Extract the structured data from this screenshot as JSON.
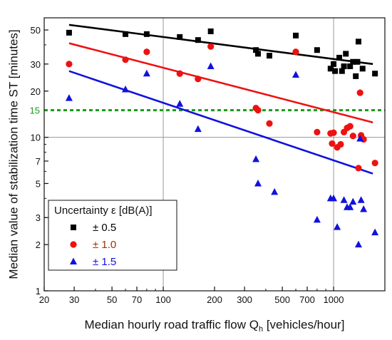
{
  "chart_data": {
    "type": "scatter",
    "x_scale": "log",
    "y_scale": "log",
    "xlim": [
      20,
      2000
    ],
    "ylim": [
      1,
      60
    ],
    "xlabel_main": "Median hourly road traffic flow Q",
    "xlabel_sub": "h",
    "xlabel_unit": "[vehicles/hour]",
    "ylabel": "Median value of stabilization time ST [minutes]",
    "x_ticks": [
      20,
      30,
      50,
      70,
      100,
      200,
      300,
      500,
      700,
      1000
    ],
    "x_tick_labels": [
      "20",
      "30",
      "50",
      "70",
      "100",
      "200",
      "300",
      "500",
      "700",
      "1000"
    ],
    "y_ticks": [
      1,
      2,
      3,
      5,
      7,
      10,
      20,
      30,
      50
    ],
    "y_tick_labels": [
      "1",
      "2",
      "3",
      "5",
      "7",
      "10",
      "20",
      "30",
      "50"
    ],
    "gridlines_x": [
      100,
      1000
    ],
    "gridlines_y": [
      10
    ],
    "reference_line": {
      "y": 15,
      "label": "15",
      "color": "#1a9a1a"
    },
    "legend": {
      "title": "Uncertainty ε [dB(A)]",
      "position": "bottom-left"
    },
    "series": [
      {
        "name": "± 0.5",
        "marker": "square",
        "color": "#000000",
        "points": [
          [
            28,
            48
          ],
          [
            60,
            47
          ],
          [
            80,
            47
          ],
          [
            125,
            45
          ],
          [
            160,
            43
          ],
          [
            190,
            49
          ],
          [
            350,
            37
          ],
          [
            360,
            35
          ],
          [
            420,
            34
          ],
          [
            600,
            46
          ],
          [
            800,
            37
          ],
          [
            960,
            28
          ],
          [
            1000,
            30
          ],
          [
            1020,
            27
          ],
          [
            1080,
            33
          ],
          [
            1120,
            27
          ],
          [
            1150,
            29
          ],
          [
            1180,
            35
          ],
          [
            1250,
            29
          ],
          [
            1300,
            31
          ],
          [
            1350,
            25
          ],
          [
            1380,
            31
          ],
          [
            1400,
            42
          ],
          [
            1480,
            28
          ],
          [
            1750,
            26
          ]
        ],
        "fit": [
          [
            28,
            54
          ],
          [
            1700,
            30
          ]
        ]
      },
      {
        "name": "± 1.0",
        "marker": "circle",
        "color": "#ee1111",
        "points": [
          [
            28,
            30
          ],
          [
            60,
            32
          ],
          [
            80,
            36
          ],
          [
            125,
            26
          ],
          [
            160,
            24
          ],
          [
            190,
            39
          ],
          [
            350,
            15.5
          ],
          [
            360,
            15
          ],
          [
            420,
            12.3
          ],
          [
            600,
            36
          ],
          [
            800,
            10.8
          ],
          [
            960,
            10.6
          ],
          [
            980,
            9.1
          ],
          [
            1000,
            10.7
          ],
          [
            1050,
            8.6
          ],
          [
            1100,
            9.0
          ],
          [
            1150,
            10.8
          ],
          [
            1200,
            11.5
          ],
          [
            1250,
            11.8
          ],
          [
            1300,
            10.2
          ],
          [
            1400,
            6.3
          ],
          [
            1430,
            19.5
          ],
          [
            1450,
            10.3
          ],
          [
            1500,
            9.7
          ],
          [
            1750,
            6.8
          ]
        ],
        "fit": [
          [
            28,
            41
          ],
          [
            1700,
            12.5
          ]
        ]
      },
      {
        "name": "± 1.5",
        "marker": "triangle",
        "color": "#1111dd",
        "points": [
          [
            28,
            18
          ],
          [
            60,
            20.5
          ],
          [
            80,
            26
          ],
          [
            125,
            16.5
          ],
          [
            160,
            11.3
          ],
          [
            190,
            29
          ],
          [
            350,
            7.2
          ],
          [
            360,
            5.0
          ],
          [
            450,
            4.4
          ],
          [
            600,
            25.5
          ],
          [
            800,
            2.9
          ],
          [
            960,
            4.0
          ],
          [
            1000,
            4.0
          ],
          [
            1050,
            2.6
          ],
          [
            1150,
            3.9
          ],
          [
            1200,
            3.5
          ],
          [
            1250,
            3.5
          ],
          [
            1300,
            3.8
          ],
          [
            1400,
            2.0
          ],
          [
            1430,
            9.8
          ],
          [
            1450,
            3.9
          ],
          [
            1500,
            3.4
          ],
          [
            1750,
            2.4
          ]
        ],
        "fit": [
          [
            28,
            27
          ],
          [
            1700,
            5.8
          ]
        ]
      }
    ]
  }
}
